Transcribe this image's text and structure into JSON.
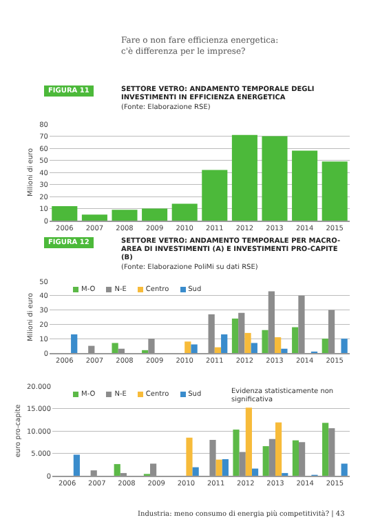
{
  "chart_data": [
    {
      "type": "bar",
      "title": "SETTORE VETRO: ANDAMENTO TEMPORALE DEGLI INVESTIMENTI IN EFFICIENZA ENERGETICA",
      "subtitle": "(Fonte: Elaborazione RSE)",
      "ylabel": "Milioni di euro",
      "annotations": [
        "Fare o non fare efficienza energetica:\nc'è differenza per le imprese?",
        "FIGURA 11"
      ],
      "categories": [
        "2006",
        "2007",
        "2008",
        "2009",
        "2010",
        "2011",
        "2012",
        "2013",
        "2014",
        "2015"
      ],
      "values": [
        12,
        5,
        9,
        10,
        14,
        42,
        71,
        70,
        58,
        49
      ],
      "color": "#4cb93a",
      "ylim": [
        0,
        80
      ],
      "yticks": [
        0,
        10,
        20,
        30,
        40,
        50,
        60,
        70,
        80
      ],
      "grid": "y"
    },
    {
      "type": "bar",
      "title": "SETTORE VETRO: ANDAMENTO TEMPORALE PER MACRO-AREA DI INVESTIMENTI (A) E INVESTIMENTI PRO-CAPITE (B)",
      "subtitle": "(Fonte: Elaborazione PoliMi su dati RSE)",
      "ylabel": "Milioni di euro",
      "annotations": [
        "FIGURA 12"
      ],
      "categories": [
        "2006",
        "2007",
        "2008",
        "2009",
        "2010",
        "2011",
        "2012",
        "2013",
        "2014",
        "2015"
      ],
      "series": [
        {
          "name": "M-O",
          "color": "#5cb947",
          "values": [
            null,
            null,
            7,
            2,
            null,
            null,
            24,
            16,
            18,
            10
          ]
        },
        {
          "name": "N-E",
          "color": "#8c8c8c",
          "values": [
            null,
            5,
            3,
            10,
            null,
            27,
            28,
            43,
            40,
            30
          ]
        },
        {
          "name": "Centro",
          "color": "#f7bb3a",
          "values": [
            null,
            null,
            null,
            null,
            8,
            4,
            14,
            11,
            null,
            null
          ]
        },
        {
          "name": "Sud",
          "color": "#3a8ccc",
          "values": [
            13,
            null,
            null,
            null,
            6,
            13,
            7,
            3,
            1,
            10
          ]
        }
      ],
      "ylim": [
        0,
        50
      ],
      "yticks": [
        0,
        10,
        20,
        30,
        40,
        50
      ],
      "grid": "y",
      "legend": "top left"
    },
    {
      "type": "bar",
      "ylabel": "euro pro-capite",
      "annotations": [
        "Evidenza statisticamente non significativa",
        "Industria: meno consumo di energia più competitività? | 43"
      ],
      "categories": [
        "2006",
        "2007",
        "2008",
        "2009",
        "2010",
        "2011",
        "2012",
        "2013",
        "2014",
        "2015"
      ],
      "series": [
        {
          "name": "M-O",
          "color": "#5cb947",
          "values": [
            null,
            null,
            2600,
            400,
            null,
            null,
            10300,
            6600,
            7900,
            11800
          ]
        },
        {
          "name": "N-E",
          "color": "#8c8c8c",
          "values": [
            null,
            1200,
            600,
            2700,
            null,
            8000,
            5300,
            8200,
            7500,
            10600
          ]
        },
        {
          "name": "Centro",
          "color": "#f7bb3a",
          "values": [
            null,
            null,
            null,
            null,
            8500,
            3600,
            15200,
            11900,
            null,
            null
          ]
        },
        {
          "name": "Sud",
          "color": "#3a8ccc",
          "values": [
            4700,
            null,
            null,
            null,
            1900,
            3700,
            1600,
            600,
            200,
            2700
          ]
        }
      ],
      "ylim": [
        0,
        20000
      ],
      "yticks": [
        0,
        {
          "value": 5000,
          "label": "5.000"
        },
        {
          "value": 10000,
          "label": "10.000"
        },
        {
          "value": 15000,
          "label": "15.000"
        },
        {
          "value": 20000,
          "label": "20.000"
        }
      ],
      "grid": "y",
      "legend": "top left"
    }
  ]
}
